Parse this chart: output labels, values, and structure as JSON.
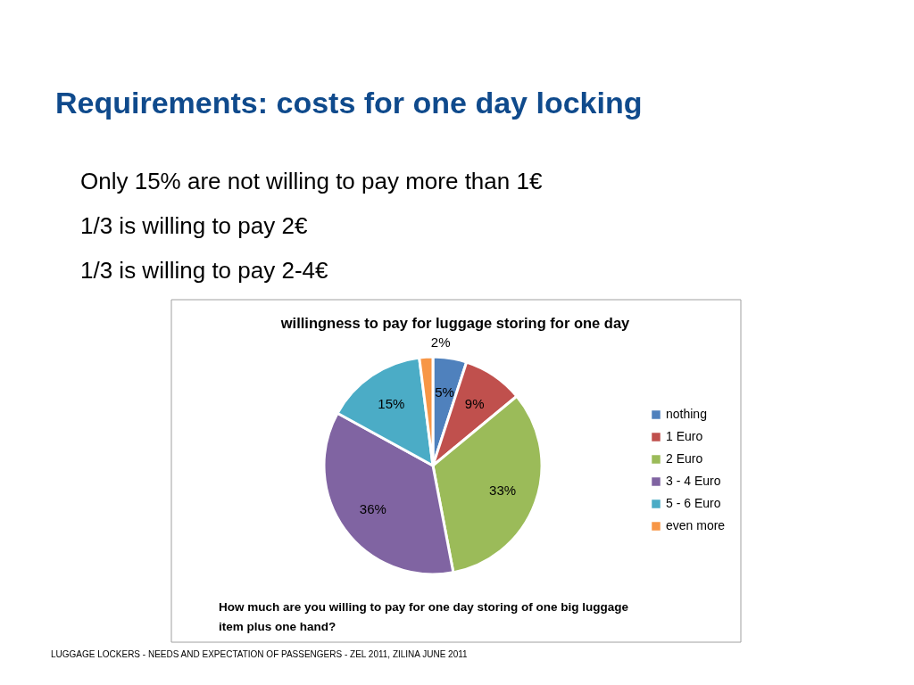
{
  "chart_data": {
    "type": "pie",
    "title": "Requirements: costs for one day locking",
    "subtitle": "willingness to pay for luggage storing for one day",
    "categories": [
      "nothing",
      "1 Euro",
      "2 Euro",
      "3 - 4 Euro",
      "5 - 6 Euro",
      "even more"
    ],
    "values": [
      5,
      9,
      33,
      36,
      15,
      2
    ],
    "colors": [
      "#4f81bd",
      "#c0504d",
      "#9bbb59",
      "#8064a2",
      "#4bacc6",
      "#f79646"
    ],
    "value_labels": [
      "5%",
      "9%",
      "33%",
      "36%",
      "15%",
      "2%"
    ],
    "legend": "right",
    "annotations": [
      "Only 15% are not willing to pay more than 1€",
      "1/3 is willing to pay 2€",
      "1/3 is willing to pay 2-4€",
      "How much are you willing to pay for one day storing of one big luggage item plus one hand?",
      "LUGGAGE LOCKERS - NEEDS AND EXPECTATION OF PASSENGERS  - ZEL 2011, ZILINA JUNE 2011"
    ]
  }
}
